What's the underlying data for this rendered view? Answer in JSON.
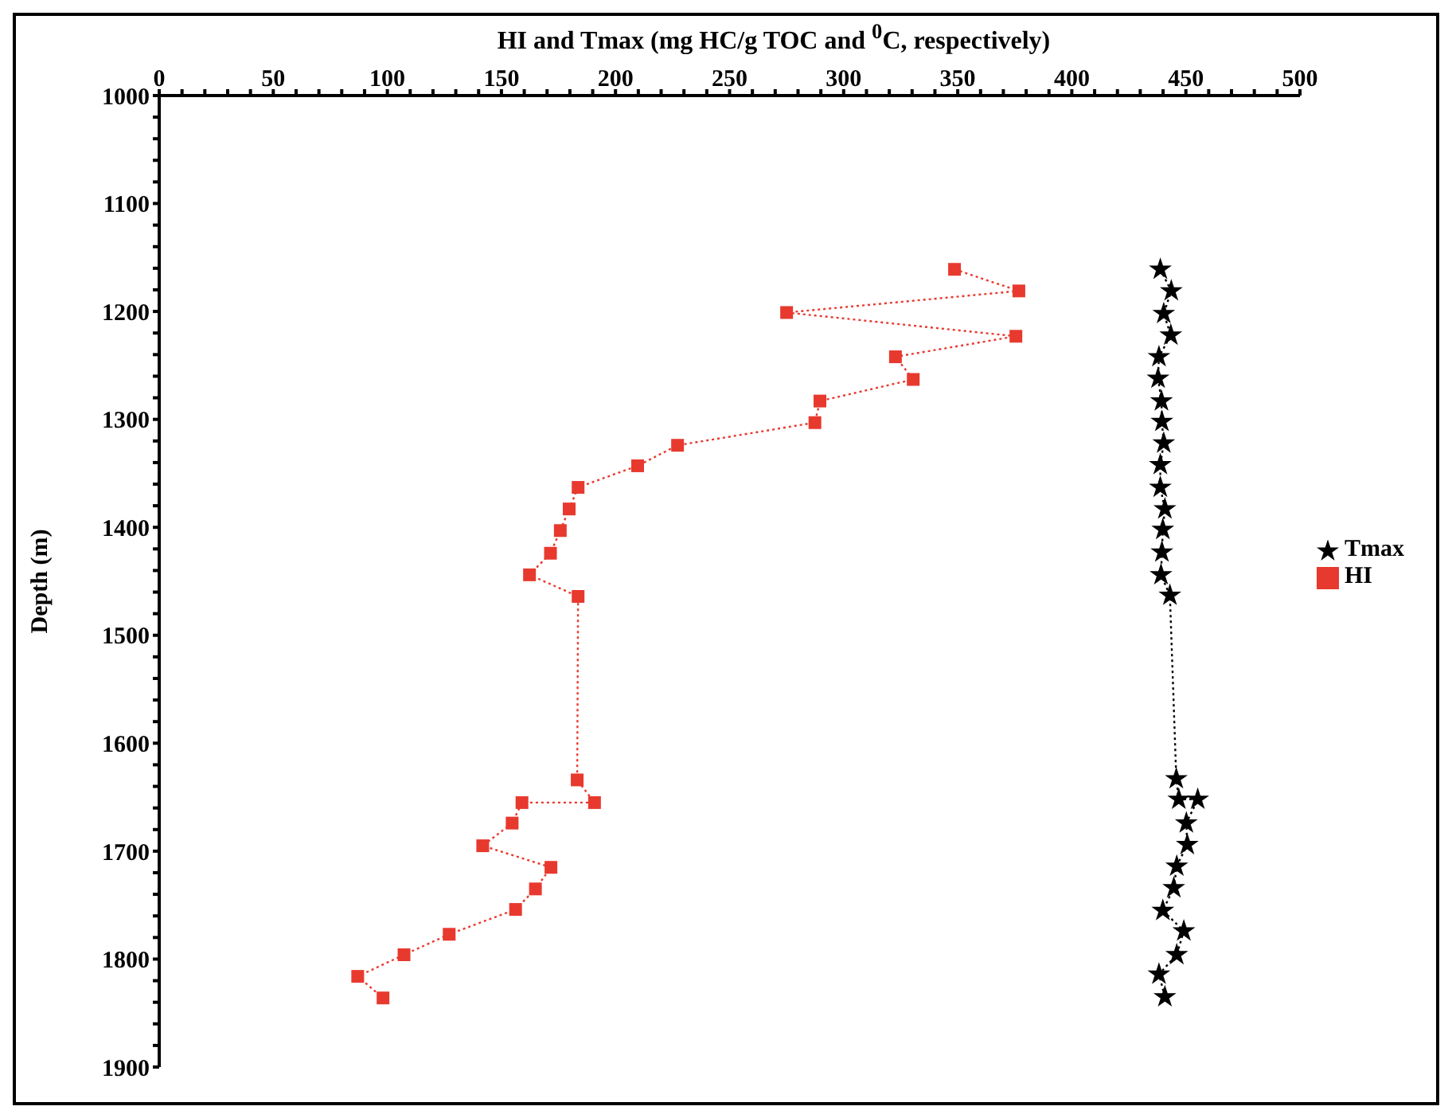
{
  "chart_data": {
    "type": "line",
    "xlabel": "HI and Tmax (mg HC/g TOC and $^{0}$C, respectively)",
    "ylabel": "Depth (m)",
    "xlim": [
      0,
      500
    ],
    "ylim": [
      1900,
      1000
    ],
    "xticks": [
      0,
      {
        "value": 10,
        "label": null
      },
      {
        "value": 20,
        "label": null
      },
      {
        "value": 30,
        "label": null
      },
      {
        "value": 40,
        "label": null
      },
      50,
      {
        "value": 60,
        "label": null
      },
      {
        "value": 70,
        "label": null
      },
      {
        "value": 80,
        "label": null
      },
      {
        "value": 90,
        "label": null
      },
      100,
      {
        "value": 110,
        "label": null
      },
      {
        "value": 120,
        "label": null
      },
      {
        "value": 130,
        "label": null
      },
      {
        "value": 140,
        "label": null
      },
      150,
      {
        "value": 160,
        "label": null
      },
      {
        "value": 170,
        "label": null
      },
      {
        "value": 180,
        "label": null
      },
      {
        "value": 190,
        "label": null
      },
      200,
      {
        "value": 210,
        "label": null
      },
      {
        "value": 220,
        "label": null
      },
      {
        "value": 230,
        "label": null
      },
      {
        "value": 240,
        "label": null
      },
      250,
      {
        "value": 260,
        "label": null
      },
      {
        "value": 270,
        "label": null
      },
      {
        "value": 280,
        "label": null
      },
      {
        "value": 290,
        "label": null
      },
      300,
      {
        "value": 310,
        "label": null
      },
      {
        "value": 320,
        "label": null
      },
      {
        "value": 330,
        "label": null
      },
      {
        "value": 340,
        "label": null
      },
      350,
      {
        "value": 360,
        "label": null
      },
      {
        "value": 370,
        "label": null
      },
      {
        "value": 380,
        "label": null
      },
      {
        "value": 390,
        "label": null
      },
      400,
      {
        "value": 410,
        "label": null
      },
      {
        "value": 420,
        "label": null
      },
      {
        "value": 430,
        "label": null
      },
      {
        "value": 440,
        "label": null
      },
      450,
      {
        "value": 460,
        "label": null
      },
      {
        "value": 470,
        "label": null
      },
      {
        "value": 480,
        "label": null
      },
      {
        "value": 490,
        "label": null
      },
      500
    ],
    "yticks": [
      1000,
      {
        "value": 1020,
        "label": null
      },
      {
        "value": 1040,
        "label": null
      },
      {
        "value": 1060,
        "label": null
      },
      {
        "value": 1080,
        "label": null
      },
      1100,
      {
        "value": 1120,
        "label": null
      },
      {
        "value": 1140,
        "label": null
      },
      {
        "value": 1160,
        "label": null
      },
      {
        "value": 1180,
        "label": null
      },
      1200,
      {
        "value": 1220,
        "label": null
      },
      {
        "value": 1240,
        "label": null
      },
      {
        "value": 1260,
        "label": null
      },
      {
        "value": 1280,
        "label": null
      },
      1300,
      {
        "value": 1320,
        "label": null
      },
      {
        "value": 1340,
        "label": null
      },
      {
        "value": 1360,
        "label": null
      },
      {
        "value": 1380,
        "label": null
      },
      1400,
      {
        "value": 1420,
        "label": null
      },
      {
        "value": 1440,
        "label": null
      },
      {
        "value": 1460,
        "label": null
      },
      {
        "value": 1480,
        "label": null
      },
      1500,
      {
        "value": 1520,
        "label": null
      },
      {
        "value": 1540,
        "label": null
      },
      {
        "value": 1560,
        "label": null
      },
      {
        "value": 1580,
        "label": null
      },
      1600,
      {
        "value": 1620,
        "label": null
      },
      {
        "value": 1640,
        "label": null
      },
      {
        "value": 1660,
        "label": null
      },
      {
        "value": 1680,
        "label": null
      },
      1700,
      {
        "value": 1720,
        "label": null
      },
      {
        "value": 1740,
        "label": null
      },
      {
        "value": 1760,
        "label": null
      },
      {
        "value": 1780,
        "label": null
      },
      1800,
      {
        "value": 1820,
        "label": null
      },
      {
        "value": 1840,
        "label": null
      },
      {
        "value": 1860,
        "label": null
      },
      {
        "value": 1880,
        "label": null
      },
      1900
    ],
    "legend": "right",
    "line_style": "dotted",
    "series": [
      {
        "name": "Tmax",
        "color": "#000000",
        "marker": "star",
        "x": [
          438.8,
          443.6,
          440.3,
          443.4,
          438.2,
          437.8,
          439.3,
          439.5,
          440.3,
          438.8,
          438.8,
          440.8,
          439.9,
          439.5,
          439.1,
          443,
          445.8,
          446.9,
          455.2,
          450.2,
          450.6,
          446,
          444.7,
          439.9,
          449.1,
          446,
          438.2,
          440.8
        ],
        "values": [
          1161,
          1181,
          1202,
          1222,
          1242,
          1262,
          1283,
          1302,
          1322,
          1342,
          1363,
          1383,
          1402,
          1423,
          1444,
          1463,
          1633,
          1652,
          1652,
          1674,
          1694,
          1714,
          1734,
          1755,
          1774,
          1796,
          1814,
          1835
        ]
      },
      {
        "name": "HI",
        "color": "#e8392e",
        "marker": "square",
        "x": [
          348.6,
          376.8,
          275,
          375.5,
          322.7,
          330.5,
          289.6,
          287.4,
          227.2,
          209.7,
          183.6,
          179.7,
          175.8,
          171.5,
          162.3,
          183.6,
          183.2,
          190.8,
          159,
          154.7,
          141.8,
          171.7,
          164.9,
          156.2,
          127.1,
          107.3,
          87,
          98.1
        ],
        "values": [
          1161,
          1181,
          1201,
          1223,
          1242,
          1263,
          1283,
          1303,
          1324,
          1343,
          1363,
          1383,
          1403,
          1424,
          1444,
          1464,
          1634,
          1655,
          1655,
          1674,
          1695,
          1715,
          1735,
          1754,
          1777,
          1796,
          1816,
          1836
        ]
      }
    ]
  }
}
